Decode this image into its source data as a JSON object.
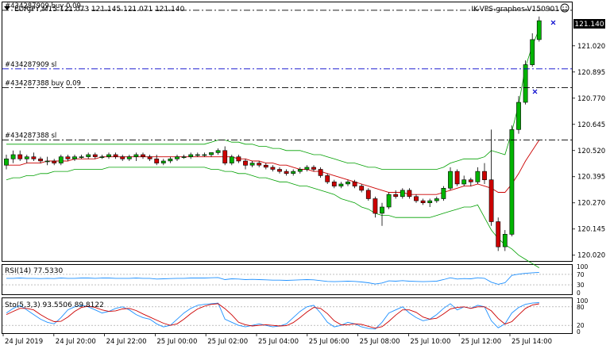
{
  "header": {
    "symbol_line": "EURJPY,M15  121.073 121.145 121.071 121.140",
    "account": "IK-VPS-graphes-V150901"
  },
  "order_lines": [
    {
      "label": "#434287909 buy 0.09",
      "price": 121.19,
      "color": "#000000",
      "style": "dashdot"
    },
    {
      "label": "#434287909 sl",
      "price": 120.91,
      "color": "#0000cc",
      "style": "dashdot"
    },
    {
      "label": "#434287388 buy 0.09",
      "price": 120.82,
      "color": "#000000",
      "style": "dashdot"
    },
    {
      "label": "#434287388 sl",
      "price": 120.57,
      "color": "#000000",
      "style": "dashdot"
    }
  ],
  "current_price": "121.140",
  "price_axis": [
    "121.020",
    "120.895",
    "120.770",
    "120.645",
    "120.520",
    "120.395",
    "120.270",
    "120.145",
    "120.020"
  ],
  "time_axis": [
    "24 Jul 2019",
    "24 Jul 20:00",
    "24 Jul 22:00",
    "25 Jul 00:00",
    "25 Jul 02:00",
    "25 Jul 04:00",
    "25 Jul 06:00",
    "25 Jul 08:00",
    "25 Jul 10:00",
    "25 Jul 12:00",
    "25 Jul 14:00"
  ],
  "rsi_panel": {
    "label": "RSI(14) 77.5330",
    "ticks": [
      "100",
      "70",
      "30",
      "0"
    ],
    "color": "#1e90ff"
  },
  "stoch_panel": {
    "label": "Sto(5,3,3) 93.5506 89.8122",
    "ticks": [
      "100",
      "80",
      "20",
      "0"
    ],
    "main_color": "#1e90ff",
    "signal_color": "#cc0000"
  },
  "chart_data": {
    "type": "candlestick",
    "ylim": [
      120.0,
      121.22
    ],
    "candle_colors": {
      "bull": "#00b400",
      "bear": "#cc0000"
    },
    "band_color": "#00a000",
    "ma_color": "#cc0000",
    "candles": [
      [
        120.45,
        120.5,
        120.43,
        120.48
      ],
      [
        120.48,
        120.52,
        120.46,
        120.5
      ],
      [
        120.5,
        120.52,
        120.47,
        120.48
      ],
      [
        120.48,
        120.5,
        120.46,
        120.49
      ],
      [
        120.49,
        120.51,
        120.47,
        120.48
      ],
      [
        120.48,
        120.49,
        120.46,
        120.47
      ],
      [
        120.47,
        120.49,
        120.45,
        120.47
      ],
      [
        120.47,
        120.48,
        120.45,
        120.46
      ],
      [
        120.46,
        120.5,
        120.45,
        120.49
      ],
      [
        120.49,
        120.5,
        120.47,
        120.48
      ],
      [
        120.48,
        120.5,
        120.47,
        120.49
      ],
      [
        120.49,
        120.5,
        120.48,
        120.49
      ],
      [
        120.49,
        120.51,
        120.48,
        120.5
      ],
      [
        120.5,
        120.51,
        120.48,
        120.49
      ],
      [
        120.49,
        120.5,
        120.48,
        120.49
      ],
      [
        120.49,
        120.51,
        120.48,
        120.5
      ],
      [
        120.5,
        120.51,
        120.48,
        120.49
      ],
      [
        120.49,
        120.5,
        120.47,
        120.48
      ],
      [
        120.48,
        120.5,
        120.47,
        120.49
      ],
      [
        120.49,
        120.51,
        120.47,
        120.5
      ],
      [
        120.5,
        120.51,
        120.48,
        120.49
      ],
      [
        120.49,
        120.5,
        120.47,
        120.48
      ],
      [
        120.48,
        120.5,
        120.45,
        120.46
      ],
      [
        120.46,
        120.48,
        120.45,
        120.47
      ],
      [
        120.47,
        120.49,
        120.46,
        120.48
      ],
      [
        120.48,
        120.5,
        120.47,
        120.49
      ],
      [
        120.49,
        120.5,
        120.48,
        120.49
      ],
      [
        120.49,
        120.51,
        120.48,
        120.5
      ],
      [
        120.5,
        120.51,
        120.49,
        120.5
      ],
      [
        120.5,
        120.51,
        120.49,
        120.5
      ],
      [
        120.5,
        120.51,
        120.49,
        120.51
      ],
      [
        120.51,
        120.53,
        120.5,
        120.52
      ],
      [
        120.52,
        120.54,
        120.45,
        120.46
      ],
      [
        120.46,
        120.5,
        120.45,
        120.49
      ],
      [
        120.49,
        120.5,
        120.46,
        120.47
      ],
      [
        120.47,
        120.48,
        120.43,
        120.45
      ],
      [
        120.45,
        120.47,
        120.44,
        120.46
      ],
      [
        120.46,
        120.47,
        120.44,
        120.45
      ],
      [
        120.45,
        120.46,
        120.43,
        120.44
      ],
      [
        120.44,
        120.45,
        120.42,
        120.43
      ],
      [
        120.43,
        120.44,
        120.41,
        120.42
      ],
      [
        120.42,
        120.43,
        120.4,
        120.41
      ],
      [
        120.41,
        120.43,
        120.4,
        120.42
      ],
      [
        120.42,
        120.44,
        120.41,
        120.43
      ],
      [
        120.43,
        120.45,
        120.42,
        120.44
      ],
      [
        120.44,
        120.45,
        120.42,
        120.43
      ],
      [
        120.43,
        120.44,
        120.39,
        120.4
      ],
      [
        120.4,
        120.41,
        120.36,
        120.37
      ],
      [
        120.37,
        120.38,
        120.34,
        120.35
      ],
      [
        120.35,
        120.37,
        120.34,
        120.36
      ],
      [
        120.36,
        120.38,
        120.35,
        120.37
      ],
      [
        120.37,
        120.38,
        120.34,
        120.35
      ],
      [
        120.35,
        120.36,
        120.32,
        120.33
      ],
      [
        120.33,
        120.34,
        120.28,
        120.29
      ],
      [
        120.29,
        120.3,
        120.2,
        120.22
      ],
      [
        120.22,
        120.27,
        120.16,
        120.25
      ],
      [
        120.25,
        120.32,
        120.24,
        120.31
      ],
      [
        120.31,
        120.33,
        120.29,
        120.3
      ],
      [
        120.3,
        120.34,
        120.29,
        120.33
      ],
      [
        120.33,
        120.34,
        120.29,
        120.3
      ],
      [
        120.3,
        120.31,
        120.27,
        120.28
      ],
      [
        120.28,
        120.29,
        120.26,
        120.27
      ],
      [
        120.27,
        120.29,
        120.25,
        120.28
      ],
      [
        120.28,
        120.3,
        120.27,
        120.29
      ],
      [
        120.29,
        120.35,
        120.28,
        120.34
      ],
      [
        120.34,
        120.44,
        120.33,
        120.42
      ],
      [
        120.42,
        120.43,
        120.35,
        120.36
      ],
      [
        120.36,
        120.4,
        120.35,
        120.38
      ],
      [
        120.38,
        120.39,
        120.35,
        120.37
      ],
      [
        120.37,
        120.44,
        120.36,
        120.42
      ],
      [
        120.42,
        120.46,
        120.36,
        120.38
      ],
      [
        120.38,
        120.62,
        120.16,
        120.18
      ],
      [
        120.18,
        120.2,
        120.04,
        120.06
      ],
      [
        120.06,
        120.14,
        120.04,
        120.12
      ],
      [
        120.12,
        120.64,
        120.11,
        120.62
      ],
      [
        120.62,
        120.78,
        120.6,
        120.75
      ],
      [
        120.75,
        120.95,
        120.74,
        120.93
      ],
      [
        120.93,
        121.08,
        120.92,
        121.05
      ],
      [
        121.05,
        121.16,
        121.04,
        121.14
      ]
    ],
    "bands_upper": [
      120.55,
      120.55,
      120.55,
      120.55,
      120.55,
      120.55,
      120.55,
      120.55,
      120.55,
      120.55,
      120.55,
      120.55,
      120.55,
      120.55,
      120.55,
      120.55,
      120.55,
      120.55,
      120.55,
      120.55,
      120.55,
      120.55,
      120.55,
      120.55,
      120.55,
      120.55,
      120.55,
      120.55,
      120.55,
      120.55,
      120.56,
      120.57,
      120.57,
      120.56,
      120.56,
      120.55,
      120.55,
      120.54,
      120.54,
      120.53,
      120.53,
      120.52,
      120.52,
      120.52,
      120.51,
      120.5,
      120.5,
      120.49,
      120.48,
      120.47,
      120.46,
      120.46,
      120.45,
      120.44,
      120.44,
      120.43,
      120.43,
      120.43,
      120.43,
      120.43,
      120.43,
      120.43,
      120.43,
      120.43,
      120.44,
      120.46,
      120.47,
      120.48,
      120.48,
      120.48,
      120.49,
      120.52,
      120.51,
      120.5,
      120.61,
      120.74,
      120.92,
      121.02,
      121.1
    ],
    "bands_lower": [
      120.38,
      120.39,
      120.39,
      120.4,
      120.4,
      120.41,
      120.41,
      120.42,
      120.42,
      120.42,
      120.43,
      120.43,
      120.43,
      120.43,
      120.43,
      120.44,
      120.44,
      120.44,
      120.44,
      120.44,
      120.44,
      120.44,
      120.44,
      120.44,
      120.44,
      120.44,
      120.44,
      120.44,
      120.44,
      120.44,
      120.43,
      120.43,
      120.42,
      120.42,
      120.41,
      120.41,
      120.4,
      120.39,
      120.39,
      120.38,
      120.37,
      120.37,
      120.36,
      120.35,
      120.35,
      120.34,
      120.33,
      120.32,
      120.31,
      120.29,
      120.28,
      120.27,
      120.25,
      120.24,
      120.22,
      120.21,
      120.21,
      120.2,
      120.2,
      120.2,
      120.2,
      120.2,
      120.2,
      120.21,
      120.22,
      120.23,
      120.24,
      120.25,
      120.25,
      120.26,
      120.2,
      120.14,
      120.1,
      120.07,
      120.05,
      120.02,
      120.0,
      119.98,
      119.96
    ],
    "ma": [
      120.45,
      120.45,
      120.45,
      120.46,
      120.46,
      120.46,
      120.47,
      120.47,
      120.47,
      120.47,
      120.48,
      120.48,
      120.48,
      120.48,
      120.49,
      120.49,
      120.49,
      120.49,
      120.49,
      120.49,
      120.49,
      120.49,
      120.49,
      120.49,
      120.49,
      120.49,
      120.49,
      120.49,
      120.49,
      120.49,
      120.49,
      120.49,
      120.49,
      120.49,
      120.48,
      120.48,
      120.47,
      120.47,
      120.46,
      120.46,
      120.45,
      120.45,
      120.44,
      120.43,
      120.43,
      120.42,
      120.42,
      120.41,
      120.4,
      120.39,
      120.38,
      120.37,
      120.36,
      120.35,
      120.34,
      120.33,
      120.32,
      120.32,
      120.32,
      120.31,
      120.31,
      120.31,
      120.31,
      120.31,
      120.32,
      120.33,
      120.34,
      120.35,
      120.35,
      120.36,
      120.35,
      120.34,
      120.32,
      120.32,
      120.36,
      120.41,
      120.47,
      120.52,
      120.57
    ],
    "rsi": [
      55,
      55,
      56,
      55,
      55,
      54,
      55,
      54,
      56,
      55,
      55,
      56,
      56,
      55,
      56,
      56,
      55,
      55,
      55,
      56,
      55,
      55,
      52,
      53,
      54,
      55,
      55,
      56,
      56,
      56,
      57,
      58,
      50,
      53,
      52,
      50,
      51,
      50,
      49,
      48,
      48,
      47,
      48,
      49,
      50,
      49,
      46,
      43,
      42,
      43,
      44,
      43,
      41,
      38,
      33,
      37,
      45,
      44,
      46,
      44,
      43,
      42,
      43,
      44,
      50,
      57,
      52,
      54,
      53,
      57,
      55,
      40,
      32,
      38,
      66,
      71,
      74,
      76,
      77.5
    ],
    "stoch_main": [
      60,
      75,
      85,
      70,
      55,
      40,
      30,
      25,
      45,
      70,
      80,
      85,
      80,
      70,
      60,
      65,
      75,
      80,
      70,
      55,
      45,
      40,
      25,
      15,
      20,
      40,
      60,
      75,
      85,
      88,
      90,
      92,
      40,
      30,
      20,
      15,
      20,
      25,
      20,
      15,
      18,
      25,
      45,
      65,
      80,
      85,
      60,
      30,
      15,
      20,
      30,
      25,
      15,
      10,
      8,
      30,
      60,
      70,
      80,
      60,
      45,
      35,
      40,
      55,
      75,
      90,
      70,
      80,
      75,
      85,
      80,
      35,
      12,
      25,
      60,
      78,
      88,
      92,
      93.5
    ],
    "stoch_signal": [
      55,
      65,
      75,
      75,
      70,
      55,
      42,
      32,
      33,
      47,
      65,
      78,
      82,
      78,
      70,
      65,
      67,
      73,
      75,
      68,
      57,
      47,
      37,
      27,
      20,
      25,
      40,
      58,
      73,
      82,
      88,
      90,
      74,
      54,
      30,
      22,
      18,
      20,
      22,
      20,
      18,
      19,
      29,
      45,
      63,
      78,
      75,
      58,
      35,
      22,
      22,
      25,
      23,
      17,
      11,
      16,
      33,
      53,
      70,
      70,
      62,
      47,
      40,
      43,
      57,
      73,
      78,
      80,
      75,
      80,
      80,
      67,
      42,
      24,
      32,
      54,
      75,
      86,
      89.8
    ]
  }
}
